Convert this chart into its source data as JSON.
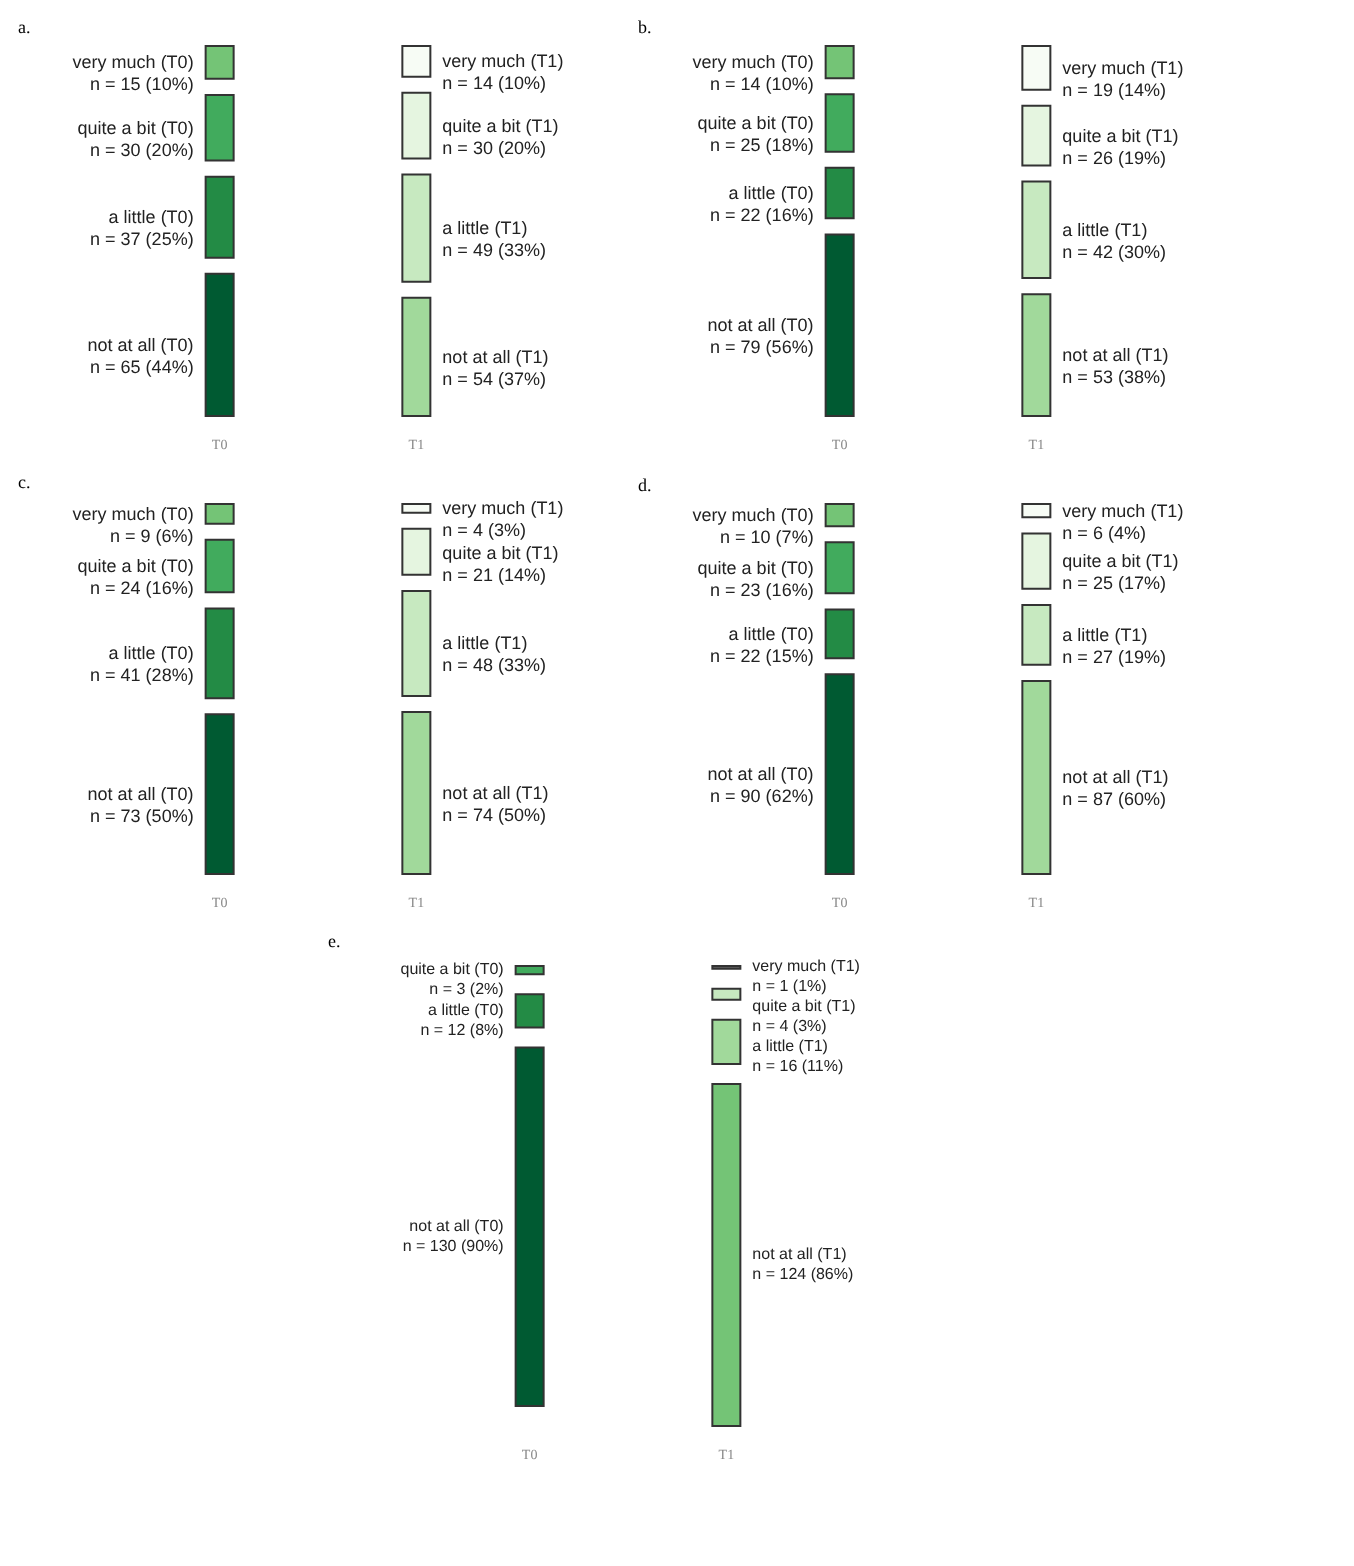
{
  "chart_data": [
    {
      "type": "other",
      "title": "a.",
      "categories": [
        "T0",
        "T1"
      ],
      "series": [
        {
          "colors": [
            "#74c476",
            "#f7fcf5"
          ],
          "values": [
            15,
            14
          ],
          "value_labels": [
            "very much (T0)\nn = 15 (10%)",
            "very much (T1)\nn = 14 (10%)"
          ]
        },
        {
          "colors": [
            "#41ab5d",
            "#e5f5e0"
          ],
          "values": [
            30,
            30
          ],
          "value_labels": [
            "quite a bit (T0)\nn = 30 (20%)",
            "quite a bit (T1)\nn = 30 (20%)"
          ]
        },
        {
          "colors": [
            "#238b45",
            "#c7e9c0"
          ],
          "values": [
            37,
            49
          ],
          "value_labels": [
            "a little (T0)\nn = 37 (25%)",
            "a little (T1)\nn = 49 (33%)"
          ]
        },
        {
          "colors": [
            "#005a32",
            "#a1d99b"
          ],
          "values": [
            65,
            54
          ],
          "value_labels": [
            "not at all (T0)\nn = 65 (44%)",
            "not at all (T1)\nn = 54 (37%)"
          ]
        }
      ]
    },
    {
      "type": "other",
      "title": "b.",
      "categories": [
        "T0",
        "T1"
      ],
      "series": [
        {
          "colors": [
            "#74c476",
            "#f7fcf5"
          ],
          "values": [
            14,
            19
          ],
          "value_labels": [
            "very much (T0)\nn = 14 (10%)",
            "very much (T1)\nn = 19 (14%)"
          ]
        },
        {
          "colors": [
            "#41ab5d",
            "#e5f5e0"
          ],
          "values": [
            25,
            26
          ],
          "value_labels": [
            "quite a bit (T0)\nn = 25 (18%)",
            "quite a bit (T1)\nn = 26 (19%)"
          ]
        },
        {
          "colors": [
            "#238b45",
            "#c7e9c0"
          ],
          "values": [
            22,
            42
          ],
          "value_labels": [
            "a little (T0)\nn = 22 (16%)",
            "a little (T1)\nn = 42 (30%)"
          ]
        },
        {
          "colors": [
            "#005a32",
            "#a1d99b"
          ],
          "values": [
            79,
            53
          ],
          "value_labels": [
            "not at all (T0)\nn = 79 (56%)",
            "not at all (T1)\nn = 53 (38%)"
          ]
        }
      ]
    },
    {
      "type": "other",
      "title": "c.",
      "categories": [
        "T0",
        "T1"
      ],
      "series": [
        {
          "colors": [
            "#74c476",
            "#f7fcf5"
          ],
          "values": [
            9,
            4
          ],
          "value_labels": [
            "very much (T0)\nn = 9 (6%)",
            "very much (T1)\nn = 4 (3%)"
          ]
        },
        {
          "colors": [
            "#41ab5d",
            "#e5f5e0"
          ],
          "values": [
            24,
            21
          ],
          "value_labels": [
            "quite a bit (T0)\nn = 24 (16%)",
            "quite a bit (T1)\nn = 21 (14%)"
          ]
        },
        {
          "colors": [
            "#238b45",
            "#c7e9c0"
          ],
          "values": [
            41,
            48
          ],
          "value_labels": [
            "a little (T0)\nn = 41 (28%)",
            "a little (T1)\nn = 48 (33%)"
          ]
        },
        {
          "colors": [
            "#005a32",
            "#a1d99b"
          ],
          "values": [
            73,
            74
          ],
          "value_labels": [
            "not at all (T0)\nn = 73 (50%)",
            "not at all (T1)\nn = 74 (50%)"
          ]
        }
      ]
    },
    {
      "type": "other",
      "title": "d.",
      "categories": [
        "T0",
        "T1"
      ],
      "series": [
        {
          "colors": [
            "#74c476",
            "#f7fcf5"
          ],
          "values": [
            10,
            6
          ],
          "value_labels": [
            "very much (T0)\nn = 10 (7%)",
            "very much (T1)\nn = 6 (4%)"
          ]
        },
        {
          "colors": [
            "#41ab5d",
            "#e5f5e0"
          ],
          "values": [
            23,
            25
          ],
          "value_labels": [
            "quite a bit (T0)\nn = 23 (16%)",
            "quite a bit (T1)\nn = 25 (17%)"
          ]
        },
        {
          "colors": [
            "#238b45",
            "#c7e9c0"
          ],
          "values": [
            22,
            27
          ],
          "value_labels": [
            "a little (T0)\nn = 22 (15%)",
            "a little (T1)\nn = 27 (19%)"
          ]
        },
        {
          "colors": [
            "#005a32",
            "#a1d99b"
          ],
          "values": [
            90,
            87
          ],
          "value_labels": [
            "not at all (T0)\nn = 90 (62%)",
            "not at all (T1)\nn = 87 (60%)"
          ]
        }
      ]
    },
    {
      "type": "other",
      "title": "e.",
      "categories": [
        "T0",
        "T1"
      ],
      "series": [
        {
          "colors": [
            null,
            "#636363"
          ],
          "values": [
            null,
            1
          ],
          "value_labels": [
            null,
            "very much (T1)\nn = 1 (1%)"
          ]
        },
        {
          "colors": [
            "#41ab5d",
            "#c7e9c0"
          ],
          "values": [
            3,
            4
          ],
          "value_labels": [
            "quite a bit (T0)\nn = 3 (2%)",
            "quite a bit (T1)\nn = 4 (3%)"
          ]
        },
        {
          "colors": [
            "#238b45",
            "#a1d99b"
          ],
          "values": [
            12,
            16
          ],
          "value_labels": [
            "a little (T0)\nn = 12 (8%)",
            "a little (T1)\nn = 16 (11%)"
          ]
        },
        {
          "colors": [
            "#005a32",
            "#74c476"
          ],
          "values": [
            130,
            124
          ],
          "value_labels": [
            "not at all (T0)\nn = 130 (90%)",
            "not at all (T1)\nn = 124 (86%)"
          ]
        }
      ]
    }
  ]
}
